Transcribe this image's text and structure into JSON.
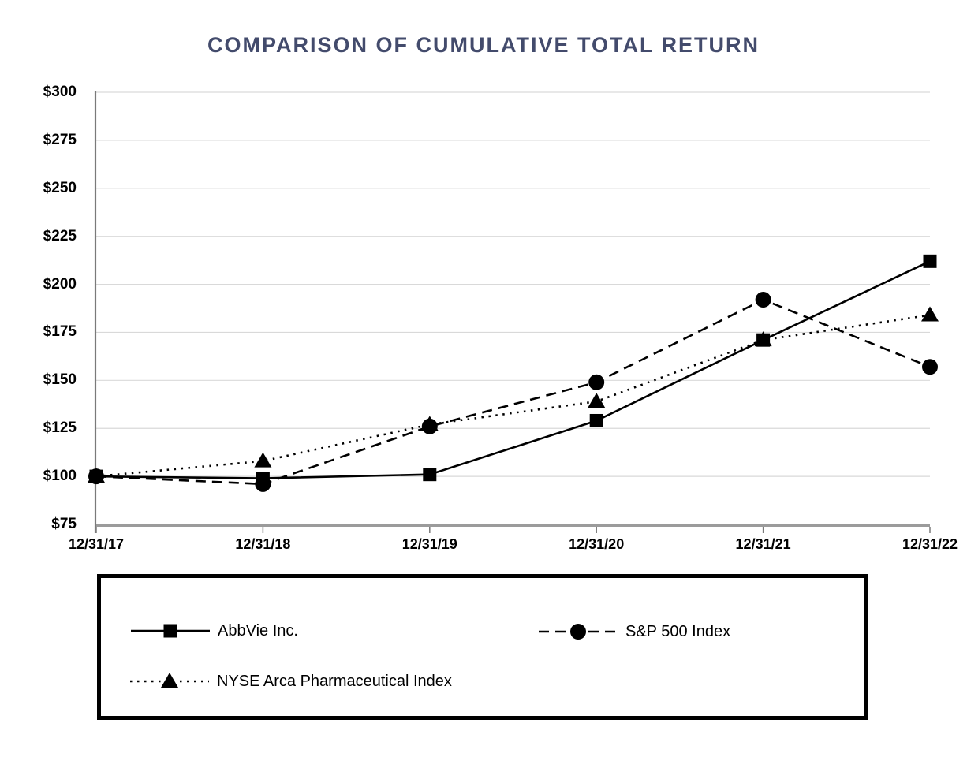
{
  "chart_data": {
    "type": "line",
    "title": "COMPARISON OF CUMULATIVE TOTAL RETURN",
    "title_color": "#434b6c",
    "x_tick_labels": [
      "12/31/17",
      "12/31/18",
      "12/31/19",
      "12/31/20",
      "12/31/21",
      "12/31/22"
    ],
    "y_ticks": [
      {
        "label": "$75",
        "value": 75
      },
      {
        "label": "$100",
        "value": 100
      },
      {
        "label": "$125",
        "value": 125
      },
      {
        "label": "$150",
        "value": 150
      },
      {
        "label": "$175",
        "value": 175
      },
      {
        "label": "$200",
        "value": 200
      },
      {
        "label": "$225",
        "value": 225
      },
      {
        "label": "$250",
        "value": 250
      },
      {
        "label": "$275",
        "value": 275
      },
      {
        "label": "$300",
        "value": 300
      }
    ],
    "ylim": [
      75,
      300
    ],
    "grid": true,
    "legend_position": "bottom-boxed",
    "series": [
      {
        "name": "AbbVie Inc.",
        "line_style": "solid",
        "marker": "square",
        "color": "#000000",
        "values": [
          100,
          99,
          101,
          129,
          171,
          212
        ]
      },
      {
        "name": "S&P 500 Index",
        "line_style": "dashed",
        "marker": "circle",
        "color": "#000000",
        "values": [
          100,
          96,
          126,
          149,
          192,
          157
        ]
      },
      {
        "name": "NYSE Arca Pharmaceutical Index",
        "line_style": "dotted",
        "marker": "triangle",
        "color": "#000000",
        "values": [
          100,
          108,
          127,
          139,
          171,
          184
        ]
      }
    ],
    "colors": {
      "grid": "#d9d9d9",
      "y_axis": "#7a7a7a",
      "x_axis": "#9b9b9b",
      "tick": "#7a7a7a",
      "text": "#000000"
    }
  }
}
